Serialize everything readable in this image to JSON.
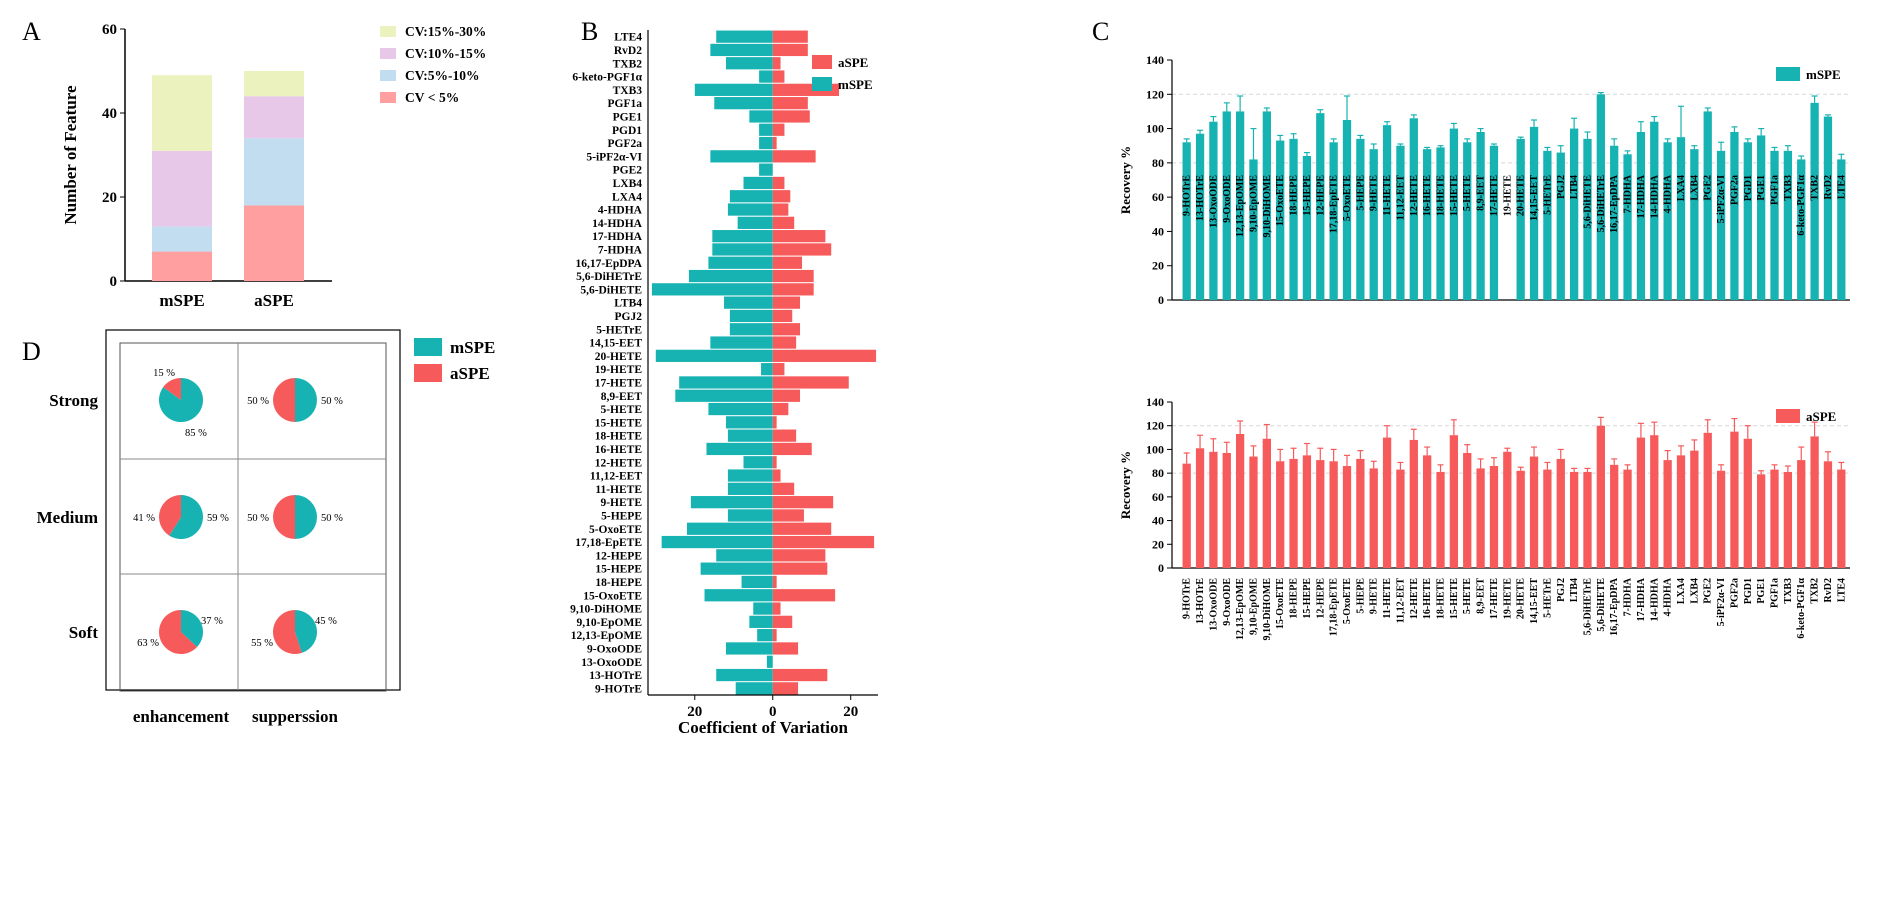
{
  "colors": {
    "teal": "#17b3b3",
    "red": "#f65a5b",
    "pink_light": "#ff9f9f",
    "blue_light": "#c2dcf0",
    "lilac": "#e7c8e8",
    "yellow_light": "#ebf2bd",
    "axis": "#000000",
    "grid": "#d7d7d7"
  },
  "chart_data": [
    {
      "panel": "A",
      "type": "bar",
      "stacked": true,
      "categories": [
        "mSPE",
        "aSPE"
      ],
      "ylabel": "Number of Feature",
      "xlabel": "",
      "ylim": [
        0,
        60
      ],
      "yticks": [
        0,
        20,
        40,
        60
      ],
      "legend_position": "top-right",
      "series": [
        {
          "name": "CV < 5%",
          "values": [
            7,
            18
          ],
          "color_key": "pink_light"
        },
        {
          "name": "CV:5%-10%",
          "values": [
            6,
            16
          ],
          "color_key": "blue_light"
        },
        {
          "name": "CV:10%-15%",
          "values": [
            18,
            10
          ],
          "color_key": "lilac"
        },
        {
          "name": "CV:15%-30%",
          "values": [
            18,
            6
          ],
          "color_key": "yellow_light"
        }
      ]
    },
    {
      "panel": "B",
      "type": "bar",
      "orientation": "horizontal",
      "diverging": true,
      "xlabel": "Coefficient of Variation",
      "xticks": [
        20,
        0,
        20
      ],
      "xlim": [
        -32,
        27
      ],
      "legend_position": "top-right",
      "categories": [
        "LTE4",
        "RvD2",
        "TXB2",
        "6-keto-PGF1α",
        "TXB3",
        "PGF1a",
        "PGE1",
        "PGD1",
        "PGF2a",
        "5-iPF2α-VI",
        "PGE2",
        "LXB4",
        "LXA4",
        "4-HDHA",
        "14-HDHA",
        "17-HDHA",
        "7-HDHA",
        "16,17-EpDPA",
        "5,6-DiHETrE",
        "5,6-DiHETE",
        "LTB4",
        "PGJ2",
        "5-HETrE",
        "14,15-EET",
        "20-HETE",
        "19-HETE",
        "17-HETE",
        "8,9-EET",
        "5-HETE",
        "15-HETE",
        "18-HETE",
        "16-HETE",
        "12-HETE",
        "11,12-EET",
        "11-HETE",
        "9-HETE",
        "5-HEPE",
        "5-OxoETE",
        "17,18-EpETE",
        "12-HEPE",
        "15-HEPE",
        "18-HEPE",
        "15-OxoETE",
        "9,10-DiHOME",
        "9,10-EpOME",
        "12,13-EpOME",
        "9-OxoODE",
        "13-OxoODE",
        "13-HOTrE",
        "9-HOTrE"
      ],
      "series": [
        {
          "name": "aSPE",
          "color_key": "red",
          "values": [
            9,
            9,
            2,
            3,
            17,
            9,
            9.5,
            3,
            1,
            11,
            0,
            3,
            4.5,
            4,
            5.5,
            13.5,
            15,
            7.5,
            10.5,
            10.5,
            7,
            5,
            7,
            6,
            26.5,
            3,
            19.5,
            7,
            4,
            1,
            6,
            10,
            1,
            2,
            5.5,
            15.5,
            8,
            15,
            26,
            13.5,
            14,
            1,
            16,
            2,
            5,
            1,
            6.5,
            0,
            14,
            6.5
          ]
        },
        {
          "name": "mSPE",
          "color_key": "teal",
          "values": [
            14.5,
            16,
            12,
            3.5,
            20,
            15,
            6,
            3.5,
            3.5,
            16,
            3.5,
            7.5,
            11,
            11.5,
            9,
            15.5,
            15.5,
            16.5,
            21.5,
            31,
            12.5,
            11,
            11,
            16,
            30,
            3,
            24,
            25,
            16.5,
            12,
            11.5,
            17,
            7.5,
            11.5,
            11.5,
            21,
            11.5,
            22,
            28.5,
            14.5,
            18.5,
            8,
            17.5,
            5,
            6,
            4,
            12,
            1.5,
            14.5,
            9.5
          ]
        }
      ]
    },
    {
      "panel": "C-top",
      "type": "bar",
      "error_bars": true,
      "series_name": "mSPE",
      "color_key": "teal",
      "ylabel": "Recovery %",
      "ylim": [
        0,
        140
      ],
      "yticks": [
        0,
        20,
        40,
        60,
        80,
        100,
        120,
        140
      ],
      "legend_position": "top-right",
      "reference_lines": [
        80,
        120
      ],
      "categories": [
        "9-HOTrE",
        "13-HOTrE",
        "13-OxoODE",
        "9-OxoODE",
        "12,13-EpOME",
        "9,10-EpOME",
        "9,10-DiHOME",
        "15-OxoETE",
        "18-HEPE",
        "15-HEPE",
        "12-HEPE",
        "17,18-EpETE",
        "5-OxoETE",
        "5-HEPE",
        "9-HETE",
        "11-HETE",
        "11,12-EET",
        "12-HETE",
        "16-HETE",
        "18-HETE",
        "15-HETE",
        "5-HETE",
        "8,9-EET",
        "17-HETE",
        "19-HETE",
        "20-HETE",
        "14,15-EET",
        "5-HETrE",
        "PGJ2",
        "LTB4",
        "5,6-DiHETE",
        "5,6-DiHETrE",
        "16,17-EpDPA",
        "7-HDHA",
        "17-HDHA",
        "14-HDHA",
        "4-HDHA",
        "LXA4",
        "LXB4",
        "PGE2",
        "5-iPF2α-VI",
        "PGF2a",
        "PGD1",
        "PGE1",
        "PGF1a",
        "TXB3",
        "6-keto-PGF1α",
        "TXB2",
        "RvD2",
        "LTE4"
      ],
      "values": [
        92,
        97,
        104,
        110,
        110,
        82,
        110,
        93,
        94,
        84,
        109,
        92,
        105,
        94,
        88,
        102,
        90,
        106,
        88,
        89,
        100,
        92,
        98,
        90,
        0,
        94,
        101,
        87,
        86,
        100,
        94,
        120,
        90,
        85,
        98,
        104,
        92,
        95,
        88,
        110,
        87,
        98,
        92,
        96,
        87,
        87,
        82,
        115,
        107,
        82
      ],
      "errors": [
        2,
        2,
        3,
        5,
        9,
        18,
        2,
        3,
        3,
        2,
        2,
        2,
        14,
        2,
        3,
        2,
        1,
        2,
        1,
        1,
        3,
        2,
        2,
        1,
        0,
        1,
        4,
        2,
        4,
        6,
        4,
        1,
        4,
        2,
        6,
        3,
        2,
        18,
        2,
        2,
        5,
        3,
        2,
        4,
        2,
        3,
        2,
        4,
        1,
        3
      ]
    },
    {
      "panel": "C-bottom",
      "type": "bar",
      "error_bars": true,
      "series_name": "aSPE",
      "color_key": "red",
      "ylabel": "Recovery %",
      "ylim": [
        0,
        140
      ],
      "yticks": [
        0,
        20,
        40,
        60,
        80,
        100,
        120,
        140
      ],
      "legend_position": "top-right",
      "reference_lines": [
        80,
        120
      ],
      "categories": [
        "9-HOTrE",
        "13-HOTrE",
        "13-OxoODE",
        "9-OxoODE",
        "12,13-EpOME",
        "9,10-EpOME",
        "9,10-DiHOME",
        "15-OxoETE",
        "18-HEPE",
        "15-HEPE",
        "12-HEPE",
        "17,18-EpETE",
        "5-OxoETE",
        "5-HEPE",
        "9-HETE",
        "11-HETE",
        "11,12-EET",
        "12-HETE",
        "16-HETE",
        "18-HETE",
        "15-HETE",
        "5-HETE",
        "8,9-EET",
        "17-HETE",
        "19-HETE",
        "20-HETE",
        "14,15-EET",
        "5-HETrE",
        "PGJ2",
        "LTB4",
        "5,6-DiHETrE",
        "5,6-DiHETE",
        "16,17-EpDPA",
        "7-HDHA",
        "17-HDHA",
        "14-HDHA",
        "4-HDHA",
        "LXA4",
        "LXB4",
        "PGE2",
        "5-iPF2α-VI",
        "PGF2a",
        "PGD1",
        "PGE1",
        "PGF1a",
        "TXB3",
        "6-keto-PGF1α",
        "TXB2",
        "RvD2",
        "LTE4"
      ],
      "values": [
        88,
        101,
        98,
        97,
        113,
        94,
        109,
        90,
        92,
        95,
        91,
        90,
        86,
        92,
        84,
        110,
        83,
        108,
        95,
        81,
        112,
        97,
        84,
        86,
        98,
        82,
        94,
        83,
        92,
        81,
        81,
        120,
        87,
        83,
        110,
        112,
        91,
        95,
        99,
        114,
        82,
        115,
        109,
        79,
        83,
        81,
        91,
        111,
        90,
        83
      ],
      "errors": [
        9,
        11,
        11,
        9,
        11,
        9,
        12,
        10,
        9,
        10,
        10,
        10,
        9,
        7,
        6,
        10,
        6,
        9,
        7,
        6,
        13,
        7,
        8,
        7,
        3,
        3,
        8,
        6,
        8,
        3,
        3,
        7,
        5,
        4,
        12,
        11,
        8,
        8,
        9,
        11,
        5,
        11,
        11,
        3,
        4,
        5,
        11,
        12,
        8,
        6
      ]
    },
    {
      "panel": "D",
      "type": "pie",
      "grid": "3x2",
      "rows": [
        "Strong",
        "Medium",
        "Soft"
      ],
      "columns": [
        "enhancement",
        "supperssion"
      ],
      "legend_position": "top-right",
      "legend": [
        {
          "name": "mSPE",
          "color_key": "teal"
        },
        {
          "name": "aSPE",
          "color_key": "red"
        }
      ],
      "cells": [
        {
          "row": "Strong",
          "col": "enhancement",
          "mSPE": 85,
          "aSPE": 15,
          "label_m": "85 %",
          "label_a": "15 %"
        },
        {
          "row": "Strong",
          "col": "supperssion",
          "mSPE": 50,
          "aSPE": 50,
          "label_m": "50 %",
          "label_a": "50 %"
        },
        {
          "row": "Medium",
          "col": "enhancement",
          "mSPE": 59,
          "aSPE": 41,
          "label_m": "59 %",
          "label_a": "41 %"
        },
        {
          "row": "Medium",
          "col": "supperssion",
          "mSPE": 50,
          "aSPE": 50,
          "label_m": "50 %",
          "label_a": "50 %"
        },
        {
          "row": "Soft",
          "col": "enhancement",
          "mSPE": 37,
          "aSPE": 63,
          "label_m": "37 %",
          "label_a": "63 %"
        },
        {
          "row": "Soft",
          "col": "supperssion",
          "mSPE": 45,
          "aSPE": 55,
          "label_m": "45 %",
          "label_a": "55 %"
        }
      ]
    }
  ],
  "panel_labels": {
    "a": "A",
    "b": "B",
    "c": "C",
    "d": "D"
  }
}
